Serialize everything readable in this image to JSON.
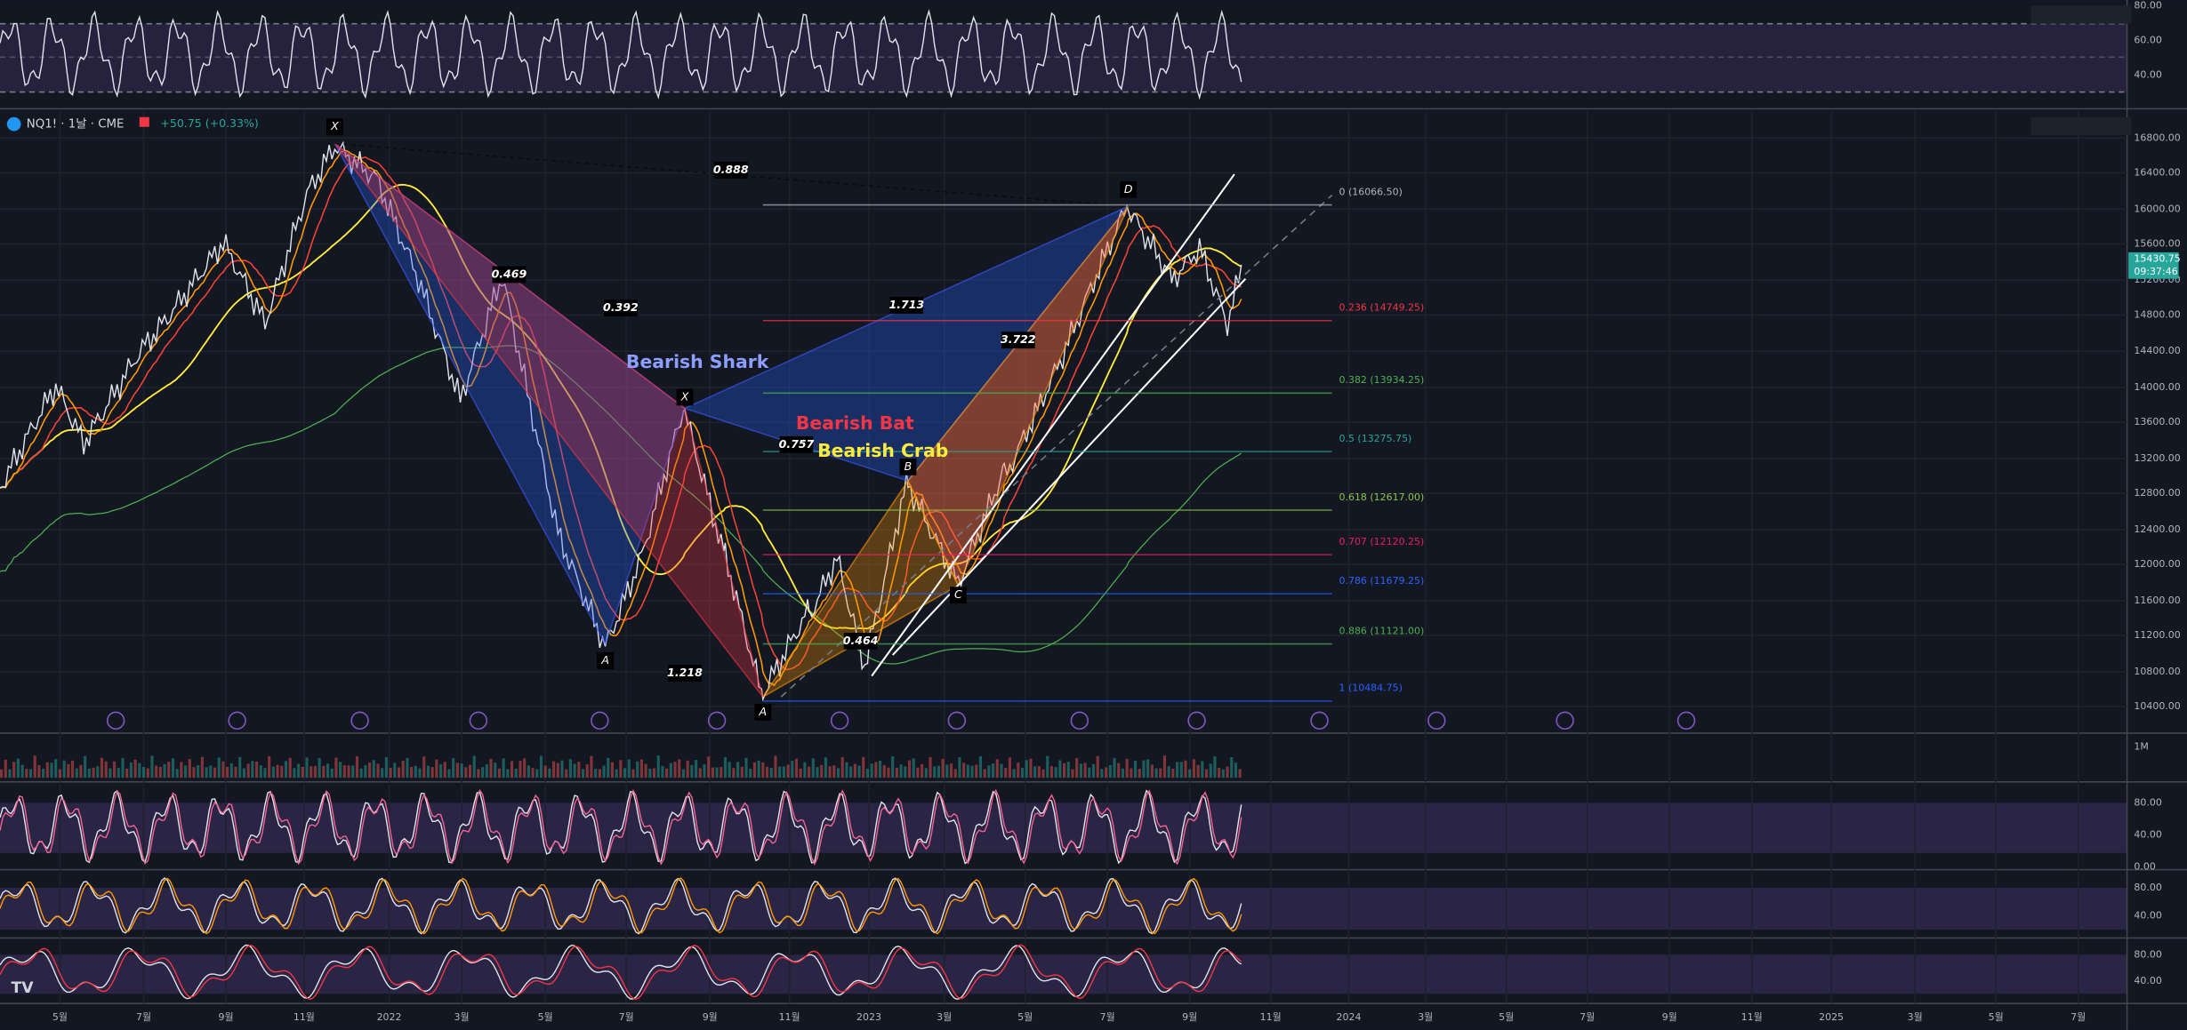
{
  "header": {
    "symbol": "NQ1! · 1날 · CME",
    "change": "+50.75 (+0.33%)"
  },
  "price_axis": [
    "16800.00",
    "16400.00",
    "16000.00",
    "15600.00",
    "15200.00",
    "14800.00",
    "14400.00",
    "14000.00",
    "13600.00",
    "13200.00",
    "12800.00",
    "12400.00",
    "12000.00",
    "11600.00",
    "11200.00",
    "10800.00",
    "10400.00"
  ],
  "current_price": {
    "price": "15430.75",
    "time": "09:37:46"
  },
  "time_axis": [
    "5월",
    "7월",
    "9월",
    "11월",
    "2022",
    "3월",
    "5월",
    "7월",
    "9월",
    "11월",
    "2023",
    "3월",
    "5월",
    "7월",
    "9월",
    "11월",
    "2024",
    "3월",
    "5월",
    "7월",
    "9월",
    "11월",
    "2025",
    "3월",
    "5월",
    "7월"
  ],
  "fib_levels": [
    "0 (16066.50)",
    "0.236 (14749.25)",
    "0.382 (13934.25)",
    "0.5 (13275.75)",
    "0.618 (12617.00)",
    "0.707 (12120.25)",
    "0.786 (11679.25)",
    "0.886 (11121.00)",
    "1 (10484.75)"
  ],
  "patterns": [
    "Bearish Shark",
    "Bearish Bat",
    "Bearish Crab"
  ],
  "ratios": [
    "0.888",
    "0.469",
    "0.392",
    "1.713",
    "3.722",
    "0.757",
    "1.218",
    "0.464"
  ],
  "points": [
    "X",
    "X",
    "A",
    "A",
    "B",
    "C",
    "D"
  ],
  "rsi_axis": [
    "80.00",
    "60.00",
    "40.00"
  ],
  "volume_axis": [
    "1M"
  ],
  "stoch1_axis": [
    "80.00",
    "40.00",
    "0.00"
  ],
  "stoch2_axis": [
    "80.00",
    "40.00"
  ],
  "stoch3_axis": [
    "80.00",
    "40.00"
  ]
}
